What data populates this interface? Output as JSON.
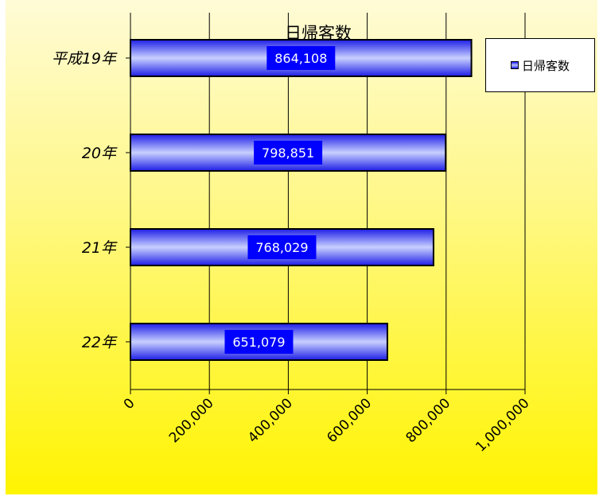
{
  "chart_data": {
    "type": "bar",
    "orientation": "horizontal",
    "title": "日帰客数",
    "categories": [
      "平成19年",
      "20年",
      "21年",
      "22年"
    ],
    "series": [
      {
        "name": "日帰客数",
        "values": [
          864108,
          798851,
          768029,
          651079
        ]
      }
    ],
    "data_labels": [
      "864,108",
      "798,851",
      "768,029",
      "651,079"
    ],
    "x_ticks": [
      "0",
      "200,000",
      "400,000",
      "600,000",
      "800,000",
      "1,000,000"
    ],
    "xlim": [
      0,
      1000000
    ],
    "grid": true,
    "legend_position": "top-right",
    "colors": {
      "bar": "#2a2aee",
      "bar_highlight": "#c8d0ff",
      "label_box": "#0000ff",
      "background_top": "#fffbd6",
      "background_bottom": "#fff400"
    }
  },
  "legend": {
    "label": "日帰客数"
  }
}
